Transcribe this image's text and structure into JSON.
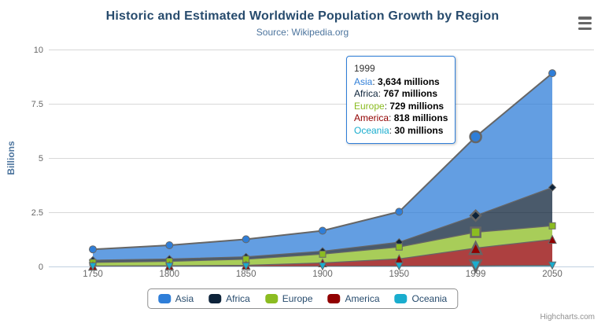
{
  "chart": {
    "title": "Historic and Estimated Worldwide Population Growth by Region",
    "subtitle": "Source: Wikipedia.org",
    "credits": "Highcharts.com"
  },
  "colors": {
    "title": "#274b6d",
    "subtitle": "#4d759e",
    "axis_label": "#666666",
    "axis_title": "#4d759e",
    "gridline": "#d8d8d8",
    "x_axis_line": "#c0d0e0",
    "series_outline": "#666666",
    "tooltip_border": "#2f7ed8",
    "legend_border": "#909090"
  },
  "chart_data": {
    "type": "area",
    "stacking": "normal",
    "title": "Historic and Estimated Worldwide Population Growth by Region",
    "subtitle": "Source: Wikipedia.org",
    "categories": [
      "1750",
      "1800",
      "1850",
      "1900",
      "1950",
      "1999",
      "2050"
    ],
    "values_unit": "millions",
    "series": [
      {
        "name": "Asia",
        "color": "#2f7ed8",
        "marker": "circle",
        "values": [
          502,
          635,
          809,
          947,
          1402,
          3634,
          5268
        ]
      },
      {
        "name": "Africa",
        "color": "#0d233a",
        "marker": "diamond",
        "values": [
          106,
          107,
          111,
          133,
          221,
          767,
          1766
        ]
      },
      {
        "name": "Europe",
        "color": "#8bbc21",
        "marker": "square",
        "values": [
          163,
          203,
          276,
          408,
          547,
          729,
          628
        ]
      },
      {
        "name": "America",
        "color": "#910000",
        "marker": "triangle",
        "values": [
          18,
          31,
          54,
          156,
          339,
          818,
          1201
        ]
      },
      {
        "name": "Oceania",
        "color": "#1aadce",
        "marker": "triangle-down",
        "values": [
          2,
          2,
          2,
          6,
          13,
          30,
          46
        ]
      }
    ],
    "xlabel": "",
    "ylabel": "Billions",
    "yticks": [
      0,
      2.5,
      5,
      7.5,
      10
    ],
    "ylim": [
      0,
      10
    ],
    "grid": true,
    "legend_position": "bottom",
    "hovered_category": "1999",
    "fill_opacity": 0.75
  },
  "tooltip": {
    "header": "1999",
    "separator": ": ",
    "rows": [
      {
        "name": "Asia",
        "color": "#2f7ed8",
        "value": "3,634 millions"
      },
      {
        "name": "Africa",
        "color": "#0d233a",
        "value": "767 millions"
      },
      {
        "name": "Europe",
        "color": "#8bbc21",
        "value": "729 millions"
      },
      {
        "name": "America",
        "color": "#910000",
        "value": "818 millions"
      },
      {
        "name": "Oceania",
        "color": "#1aadce",
        "value": "30 millions"
      }
    ]
  }
}
